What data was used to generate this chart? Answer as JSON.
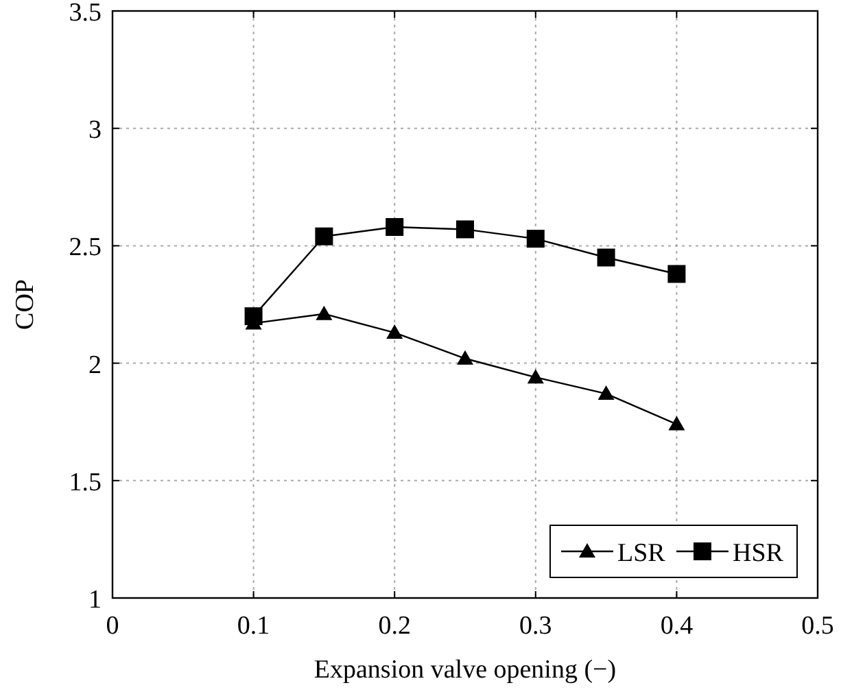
{
  "chart_data": {
    "type": "line",
    "xlabel": "Expansion valve opening (−)",
    "ylabel": "COP",
    "x": [
      0.1,
      0.15,
      0.2,
      0.25,
      0.3,
      0.35,
      0.4
    ],
    "series": [
      {
        "name": "LSR",
        "color": "#000000",
        "marker": "triangle",
        "values": [
          2.17,
          2.21,
          2.13,
          2.02,
          1.94,
          1.87,
          1.74
        ]
      },
      {
        "name": "HSR",
        "color": "#000000",
        "marker": "square",
        "values": [
          2.2,
          2.54,
          2.58,
          2.57,
          2.53,
          2.45,
          2.38
        ]
      }
    ],
    "xlim": [
      0,
      0.5
    ],
    "xticks": [
      0,
      0.1,
      0.2,
      0.3,
      0.4,
      0.5
    ],
    "ylim": [
      1,
      3.5
    ],
    "yticks": [
      1,
      1.5,
      2,
      2.5,
      3,
      3.5
    ],
    "grid": true,
    "legend": "bottom right",
    "line_style": "solid"
  }
}
